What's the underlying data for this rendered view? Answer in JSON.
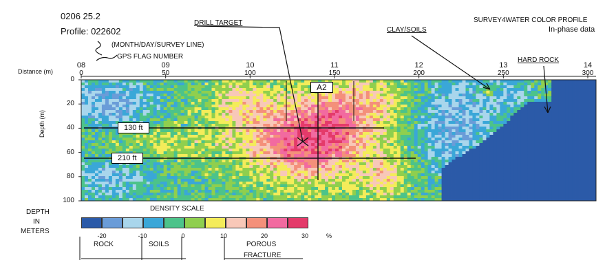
{
  "header": {
    "id_line": "0206 25.2",
    "profile_label": "Profile: 022602",
    "profile_note": "(MONTH/DAY/SURVEY LINE)",
    "gps_flag_label": "GPS FLAG NUMBER",
    "distance_label": "Distance (m)",
    "title_line1": "SURVEY4WATER COLOR PROFILE",
    "title_line2": "In-phase data"
  },
  "annotations": {
    "drill_target": "DRILL TARGET",
    "clay_soils": "CLAY/SOILS",
    "hard_rock": "HARD ROCK",
    "a2": "A2",
    "ft130": "130 ft",
    "ft210": "210 ft"
  },
  "axes": {
    "gps_flags": [
      "08",
      "09",
      "10",
      "11",
      "12",
      "13",
      "14"
    ],
    "distance_ticks": [
      "0",
      "50",
      "100",
      "150",
      "200",
      "250",
      "300"
    ],
    "depth_ticks": [
      "0",
      "20",
      "40",
      "60",
      "80",
      "100"
    ],
    "depth_axis_label": "Depth (m)"
  },
  "legend": {
    "depth_label_lines": [
      "DEPTH",
      "IN",
      "METERS"
    ],
    "density_scale_label": "DENSITY SCALE",
    "colors": [
      "#2b5aa8",
      "#6a9cd8",
      "#a9d6ec",
      "#3aa7d8",
      "#4cc38a",
      "#8fcf4e",
      "#f4ec5a",
      "#f8c8b8",
      "#f4907a",
      "#f26aa0",
      "#e43a6a"
    ],
    "tick_values": [
      "-20",
      "-10",
      "0",
      "10",
      "20",
      "30"
    ],
    "unit": "%",
    "classes": [
      "ROCK",
      "SOILS",
      "POROUS",
      "FRACTURE"
    ]
  }
}
